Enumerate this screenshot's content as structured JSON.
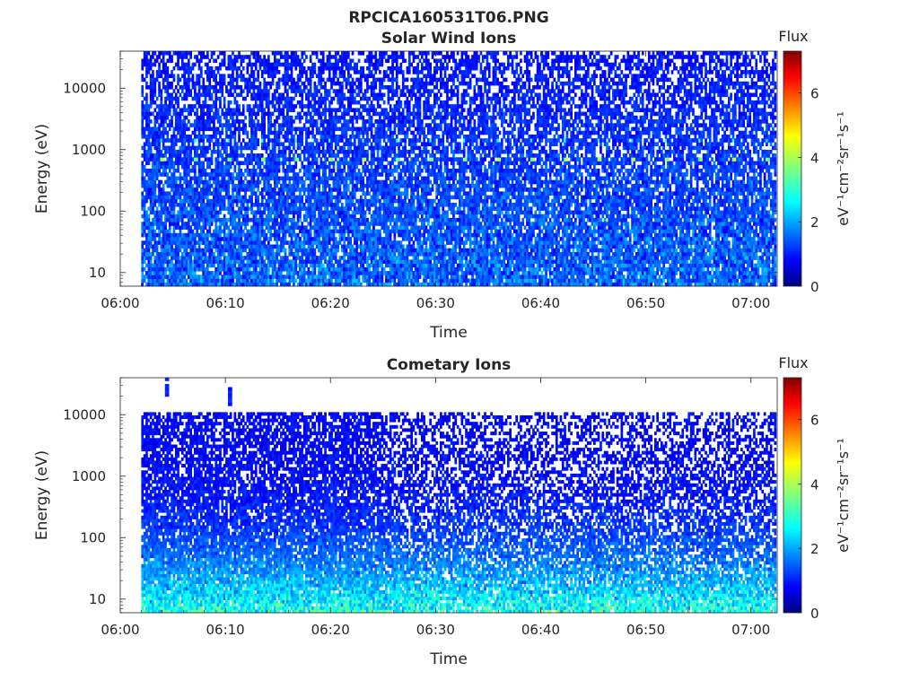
{
  "figure": {
    "title": "RPCICA160531T06.PNG"
  },
  "chart_data": [
    {
      "type": "heatmap",
      "id": "solar",
      "title": "Solar Wind Ions",
      "xlabel": "Time",
      "ylabel": "Energy (eV)",
      "y_scale": "log",
      "xlim": [
        "06:00",
        "07:02:30"
      ],
      "ylim": [
        6,
        40000
      ],
      "data_range_x": [
        "06:02",
        "07:02:15"
      ],
      "data_range_y": [
        6,
        40000
      ],
      "x_ticks": [
        "06:00",
        "06:10",
        "06:20",
        "06:30",
        "06:40",
        "06:50",
        "07:00"
      ],
      "y_ticks": [
        "10",
        "100",
        "1000",
        "10000"
      ],
      "peak_energy_eV": 700,
      "secondary_energy_eV": 1400,
      "peak_flux": 4.2,
      "background_flux": 1.0,
      "sweep_period_s": 192,
      "colorbar": {
        "label": "Flux",
        "units": "eV⁻¹cm⁻²sr⁻¹s⁻¹",
        "ticks": [
          "0",
          "2",
          "4",
          "6"
        ],
        "range": [
          0,
          7.3
        ],
        "colormap": "jet"
      }
    },
    {
      "type": "heatmap",
      "id": "cometary",
      "title": "Cometary Ions",
      "xlabel": "Time",
      "ylabel": "Energy (eV)",
      "y_scale": "log",
      "xlim": [
        "06:00",
        "07:02:30"
      ],
      "ylim": [
        6,
        40000
      ],
      "data_range_x": [
        "06:02",
        "07:02:15"
      ],
      "data_range_y": [
        6,
        11000
      ],
      "x_ticks": [
        "06:00",
        "06:10",
        "06:20",
        "06:30",
        "06:40",
        "06:50",
        "07:00"
      ],
      "y_ticks": [
        "10",
        "100",
        "1000",
        "10000"
      ],
      "low_energy_flux": 2.6,
      "background_flux": 1.0,
      "colorbar": {
        "label": "Flux",
        "units": "eV⁻¹cm⁻²sr⁻¹s⁻¹",
        "ticks": [
          "0",
          "2",
          "4",
          "6"
        ],
        "range": [
          0,
          7.3
        ],
        "colormap": "jet"
      }
    }
  ]
}
